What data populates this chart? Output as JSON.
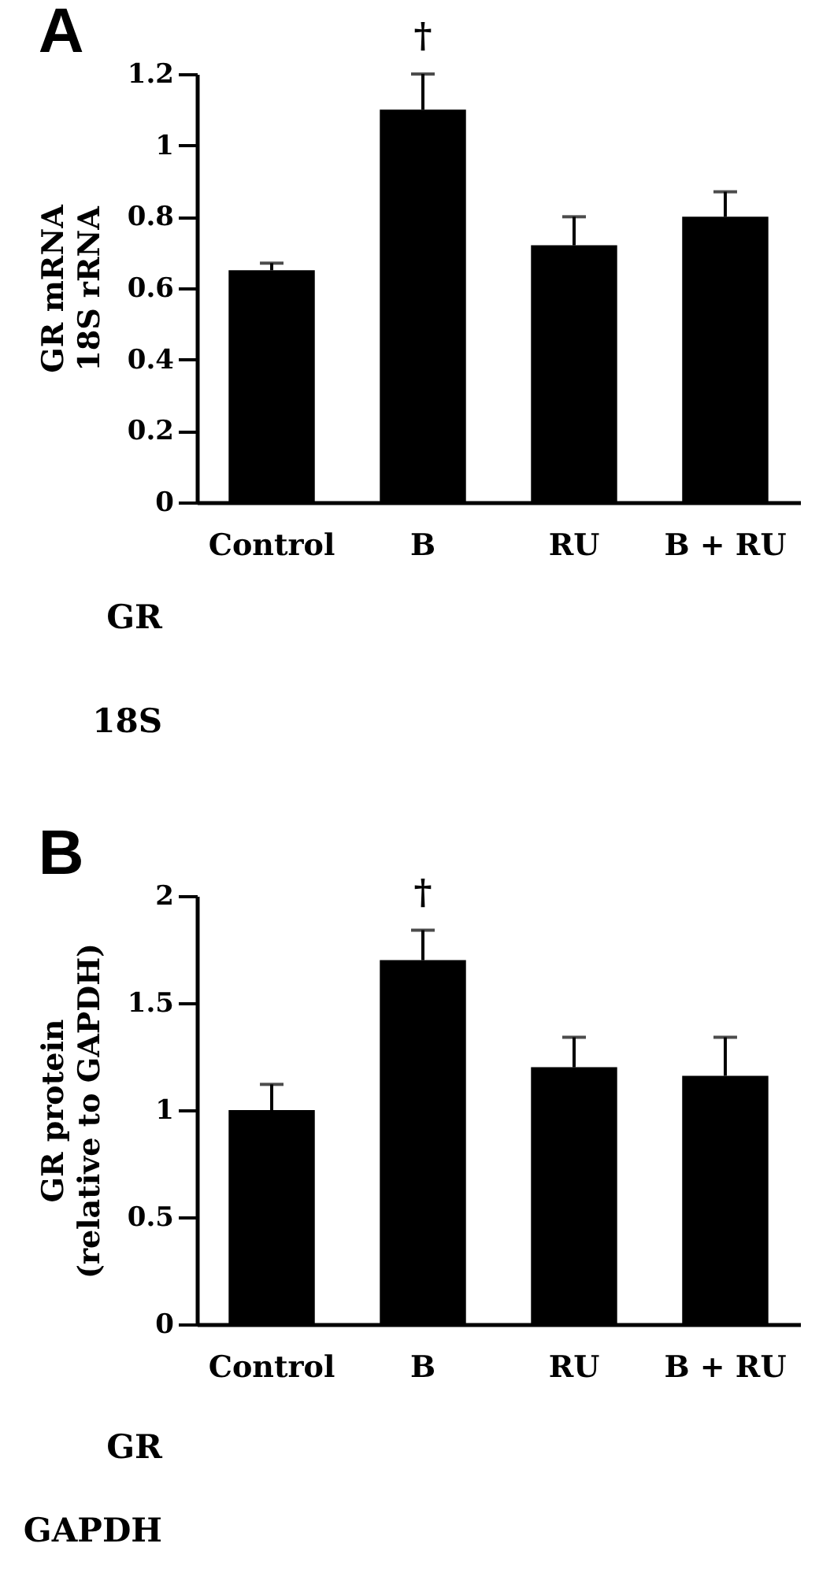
{
  "chart_data": [
    {
      "type": "bar",
      "title": "A",
      "categories": [
        "Control",
        "B",
        "RU",
        "B + RU"
      ],
      "values": [
        0.65,
        1.1,
        0.72,
        0.8
      ],
      "errors": [
        0.02,
        0.1,
        0.08,
        0.07
      ],
      "color": "#000000",
      "ylabel": "GR mRNA\n18S rRNA",
      "ylim": [
        0,
        1.2
      ],
      "yticks": [
        0,
        0.2,
        0.4,
        0.6,
        0.8,
        1,
        1.2
      ],
      "annotations": [
        {
          "text": "†",
          "x": "B",
          "y": 1.1
        }
      ]
    },
    {
      "type": "other",
      "annotations": [
        "GR",
        "18S"
      ]
    },
    {
      "type": "bar",
      "title": "B",
      "categories": [
        "Control",
        "B",
        "RU",
        "B + RU"
      ],
      "values": [
        1.0,
        1.7,
        1.2,
        1.16
      ],
      "errors": [
        0.12,
        0.14,
        0.14,
        0.18
      ],
      "color": "#000000",
      "ylabel": "GR protein\n(relative to GAPDH)",
      "ylim": [
        0,
        2
      ],
      "yticks": [
        0,
        0.5,
        1,
        1.5,
        2
      ],
      "annotations": [
        {
          "text": "†",
          "x": "B",
          "y": 1.7
        }
      ]
    },
    {
      "type": "other",
      "annotations": [
        "GR",
        "GAPDH"
      ]
    }
  ]
}
